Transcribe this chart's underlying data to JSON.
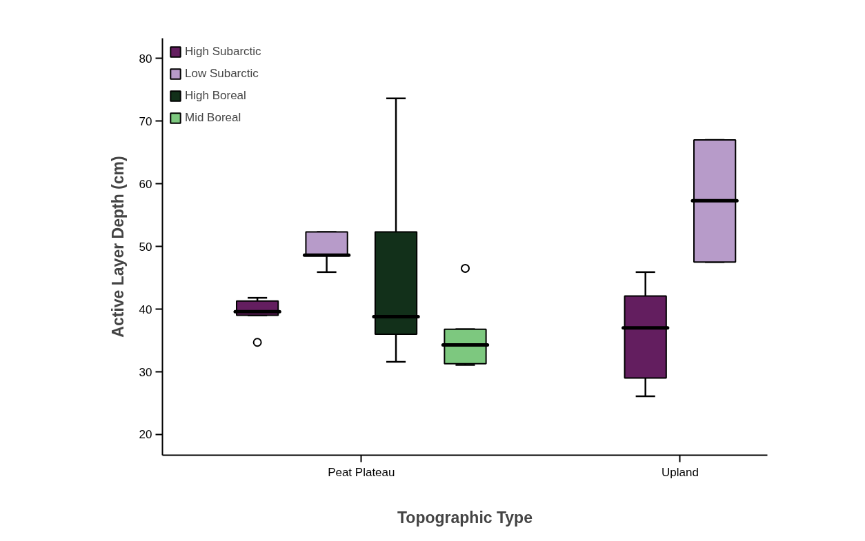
{
  "chart_data": {
    "type": "box",
    "xlabel": "Topographic Type",
    "ylabel": "Active Layer Depth (cm)",
    "categories": [
      "Peat Plateau",
      "Upland"
    ],
    "ylim": [
      16.7,
      83.2
    ],
    "yticks": [
      20,
      30,
      40,
      50,
      60,
      70,
      80
    ],
    "grid": false,
    "legend": "top left",
    "series": [
      {
        "name": "High Subarctic",
        "color": "#631e5f",
        "boxes": [
          {
            "low": 39.0,
            "q1": 39.0,
            "median": 39.6,
            "q3": 41.3,
            "high": 41.8,
            "outliers": [
              34.7
            ]
          },
          {
            "low": 26.1,
            "q1": 29.0,
            "median": 37.0,
            "q3": 42.1,
            "high": 45.9
          }
        ]
      },
      {
        "name": "Low Subarctic",
        "color": "#b79bc9",
        "boxes": [
          {
            "low": 45.9,
            "q1": 48.6,
            "median": 48.6,
            "q3": 52.3,
            "high": 52.3
          },
          {
            "low": 47.5,
            "q1": 47.5,
            "median": 57.3,
            "q3": 67.0,
            "high": 67.0
          }
        ]
      },
      {
        "name": "High Boreal",
        "color": "#12301a",
        "boxes": [
          {
            "low": 31.6,
            "q1": 36.0,
            "median": 38.8,
            "q3": 52.3,
            "high": 73.6
          },
          null
        ]
      },
      {
        "name": "Mid Boreal",
        "color": "#7dc87f",
        "boxes": [
          {
            "low": 31.1,
            "q1": 31.3,
            "median": 34.3,
            "q3": 36.8,
            "high": 36.8,
            "outliers": [
              46.5
            ]
          },
          null
        ]
      }
    ]
  }
}
